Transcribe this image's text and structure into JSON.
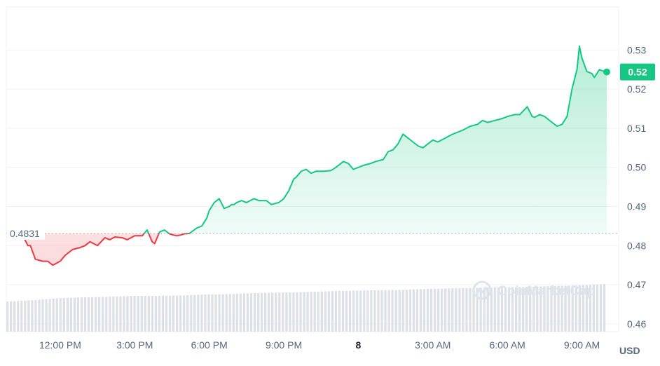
{
  "chart_data": {
    "type": "area",
    "title": "",
    "xlabel": "",
    "ylabel": "",
    "unit": "USD",
    "watermark": "CoinMarketCap",
    "ylim": [
      0.458,
      0.541
    ],
    "y_ticks": [
      0.46,
      0.47,
      0.48,
      0.49,
      0.5,
      0.51,
      0.52,
      0.53
    ],
    "y_tick_labels": [
      "0.46",
      "0.47",
      "0.48",
      "0.49",
      "0.50",
      "0.51",
      "0.52",
      "0.53"
    ],
    "x_ticks": [
      {
        "hours": 2,
        "label": "12:00 PM",
        "bold": false
      },
      {
        "hours": 5,
        "label": "3:00 PM",
        "bold": false
      },
      {
        "hours": 8,
        "label": "6:00 PM",
        "bold": false
      },
      {
        "hours": 11,
        "label": "9:00 PM",
        "bold": false
      },
      {
        "hours": 14,
        "label": "8",
        "bold": true
      },
      {
        "hours": 17,
        "label": "3:00 AM",
        "bold": false
      },
      {
        "hours": 20,
        "label": "6:00 AM",
        "bold": false
      },
      {
        "hours": 23,
        "label": "9:00 AM",
        "bold": false
      }
    ],
    "baseline": {
      "value": 0.4831,
      "label": "0.4831"
    },
    "current": {
      "value": 0.5244,
      "label": "0.52"
    },
    "colors": {
      "up": "#16c784",
      "down": "#ea3943",
      "grid": "#eff2f5",
      "baseline": "#a6b0c3",
      "volume": "#dde1e7",
      "axis_text": "#58667e"
    },
    "price_series": {
      "name": "",
      "x_hours": [
        0.0,
        0.1,
        0.2,
        0.3,
        0.5,
        0.7,
        0.8,
        1.0,
        1.3,
        1.5,
        1.7,
        2.0,
        2.2,
        2.5,
        2.8,
        3.0,
        3.2,
        3.5,
        3.8,
        4.0,
        4.2,
        4.5,
        4.7,
        5.0,
        5.3,
        5.5,
        5.7,
        5.8,
        6.0,
        6.2,
        6.3,
        6.4,
        6.5,
        6.7,
        6.9,
        7.0,
        7.2,
        7.5,
        7.7,
        7.9,
        8.0,
        8.2,
        8.4,
        8.6,
        8.8,
        8.9,
        9.0,
        9.1,
        9.3,
        9.5,
        9.8,
        10.0,
        10.3,
        10.5,
        10.8,
        11.0,
        11.2,
        11.4,
        11.5,
        11.7,
        11.9,
        12.1,
        12.3,
        12.6,
        12.9,
        13.1,
        13.4,
        13.6,
        13.8,
        14.0,
        14.2,
        14.5,
        14.7,
        15.0,
        15.2,
        15.4,
        15.6,
        15.8,
        16.0,
        16.2,
        16.4,
        16.6,
        16.8,
        17.0,
        17.2,
        17.5,
        17.8,
        18.0,
        18.2,
        18.5,
        18.8,
        19.0,
        19.2,
        19.5,
        19.8,
        20.0,
        20.3,
        20.5,
        20.8,
        21.0,
        21.1,
        21.3,
        21.5,
        21.8,
        22.0,
        22.2,
        22.4,
        22.6,
        22.8,
        22.9,
        23.0,
        23.2,
        23.4,
        23.5,
        23.7,
        23.9,
        24.0
      ],
      "values": [
        0.4831,
        0.4825,
        0.4818,
        0.482,
        0.4825,
        0.48,
        0.48,
        0.4765,
        0.476,
        0.476,
        0.475,
        0.476,
        0.4775,
        0.479,
        0.4795,
        0.48,
        0.481,
        0.48,
        0.482,
        0.4815,
        0.4822,
        0.482,
        0.4815,
        0.4825,
        0.4825,
        0.484,
        0.481,
        0.4805,
        0.4835,
        0.484,
        0.4835,
        0.483,
        0.4828,
        0.4825,
        0.4828,
        0.483,
        0.4831,
        0.4845,
        0.485,
        0.487,
        0.489,
        0.491,
        0.492,
        0.4895,
        0.49,
        0.4905,
        0.4905,
        0.491,
        0.4915,
        0.491,
        0.492,
        0.4915,
        0.4915,
        0.4905,
        0.491,
        0.492,
        0.494,
        0.497,
        0.4975,
        0.499,
        0.4995,
        0.4985,
        0.499,
        0.499,
        0.4992,
        0.5,
        0.5015,
        0.501,
        0.4995,
        0.5,
        0.5005,
        0.501,
        0.5015,
        0.502,
        0.504,
        0.5045,
        0.506,
        0.5085,
        0.5075,
        0.5065,
        0.5055,
        0.505,
        0.506,
        0.507,
        0.5065,
        0.5075,
        0.5085,
        0.509,
        0.5095,
        0.5105,
        0.511,
        0.512,
        0.5115,
        0.512,
        0.5125,
        0.513,
        0.5135,
        0.5135,
        0.5155,
        0.513,
        0.5128,
        0.5135,
        0.513,
        0.5115,
        0.5105,
        0.511,
        0.513,
        0.52,
        0.525,
        0.531,
        0.528,
        0.5245,
        0.524,
        0.523,
        0.525,
        0.5245,
        0.5244
      ]
    },
    "volume_series": {
      "name": "",
      "relative_values": [
        0.63,
        0.66,
        0.7,
        0.72,
        0.73,
        0.75,
        0.75,
        0.76,
        0.78,
        0.79,
        0.81,
        0.82,
        0.83,
        0.85,
        0.86,
        0.87,
        0.88,
        0.9,
        0.91,
        0.92,
        0.93,
        0.94,
        0.96,
        0.97,
        1.0
      ]
    }
  }
}
